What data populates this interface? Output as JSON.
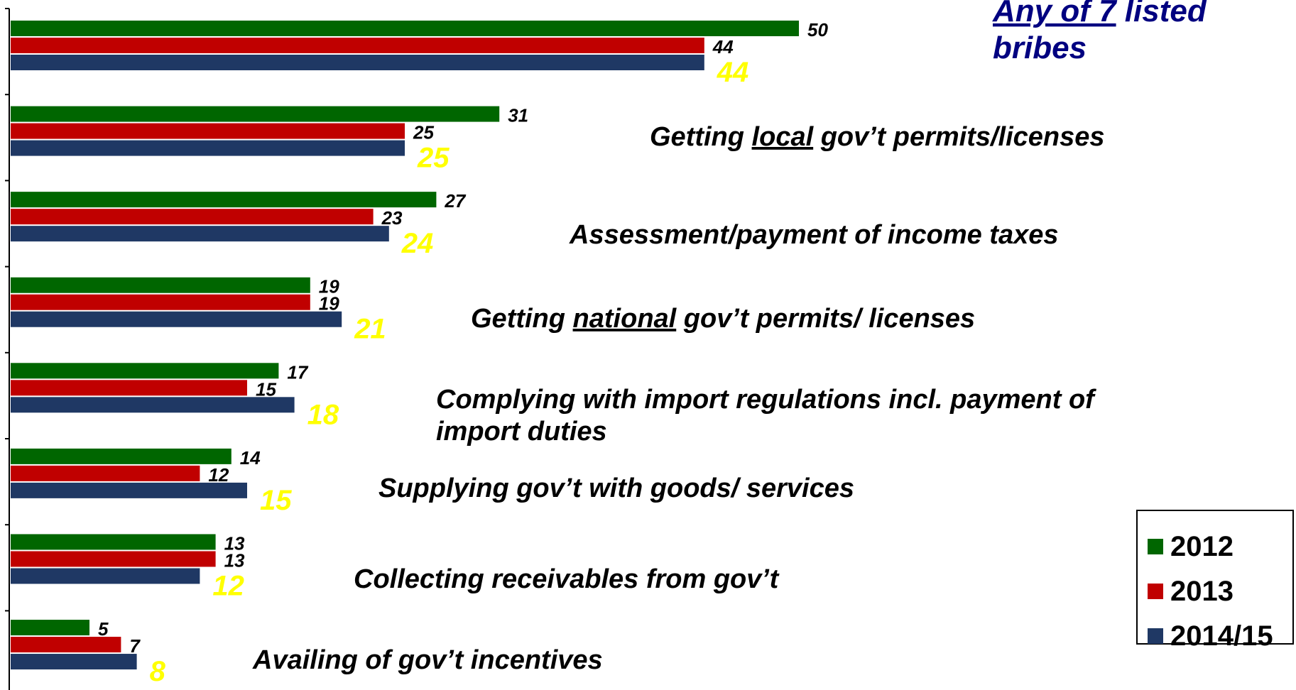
{
  "chart_data": {
    "type": "bar",
    "orientation": "horizontal",
    "categories": [
      "Any of 7 listed bribes",
      "Getting local gov’t permits/licenses",
      "Assessment/payment of income taxes",
      "Getting national gov’t permits/ licenses",
      "Complying with import regulations incl. payment of import duties",
      "Supplying gov’t with goods/ services",
      "Collecting receivables from gov’t",
      "Availing of gov’t incentives"
    ],
    "category_labels": [
      {
        "before": "",
        "emph": "Any of 7",
        "after": " listed",
        "line2": "bribes"
      },
      {
        "before": "Getting ",
        "emph": "local",
        "after": " gov’t permits/licenses",
        "line2": ""
      },
      {
        "before": "Assessment/payment of income taxes",
        "emph": "",
        "after": "",
        "line2": ""
      },
      {
        "before": "Getting ",
        "emph": "national",
        "after": " gov’t permits/ licenses",
        "line2": ""
      },
      {
        "before": "Complying with import regulations incl. payment of",
        "emph": "",
        "after": "",
        "line2": "import duties"
      },
      {
        "before": "Supplying gov’t with goods/ services",
        "emph": "",
        "after": "",
        "line2": ""
      },
      {
        "before": "Collecting receivables from gov’t",
        "emph": "",
        "after": "",
        "line2": ""
      },
      {
        "before": "Availing of gov’t incentives",
        "emph": "",
        "after": "",
        "line2": ""
      }
    ],
    "series": [
      {
        "name": "2012",
        "color": "#006600",
        "label_color": "#000000",
        "values": [
          50,
          31,
          27,
          19,
          17,
          14,
          13,
          5
        ]
      },
      {
        "name": "2013",
        "color": "#c00000",
        "label_color": "#000000",
        "values": [
          44,
          25,
          23,
          19,
          15,
          12,
          13,
          7
        ]
      },
      {
        "name": "2014/15",
        "color": "#1f3864",
        "label_color": "#ffff00",
        "values": [
          44,
          25,
          24,
          21,
          18,
          15,
          12,
          8
        ]
      }
    ],
    "xlim": [
      0,
      64
    ],
    "legend_position": "bottom-right",
    "highlight_label_color": "#000080",
    "label_color": "#000000"
  }
}
